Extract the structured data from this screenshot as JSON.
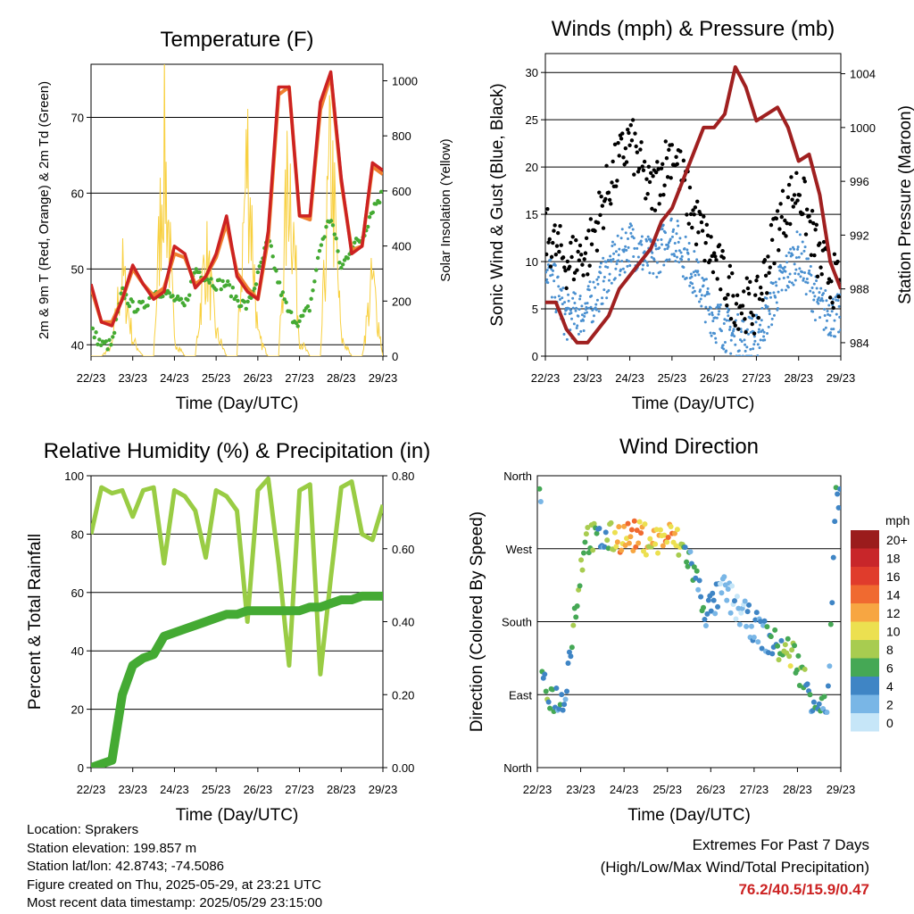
{
  "charts": {
    "time_ticks": [
      "22/23",
      "23/23",
      "24/23",
      "25/23",
      "26/23",
      "27/23",
      "28/23",
      "29/23"
    ],
    "time_axis_label": "Time (Day/UTC)"
  },
  "chart_data": [
    {
      "type": "line",
      "title": "Temperature (F)",
      "xlabel": "Time (Day/UTC)",
      "ylabel": "2m & 9m T (Red, Orange) & 2m Td (Green)",
      "ylabel_right": "Solar Insolation (Yellow)",
      "ylim": [
        38.5,
        77
      ],
      "yticks": [
        40,
        50,
        60,
        70
      ],
      "ylim_right": [
        0,
        1060
      ],
      "yticks_right": [
        0,
        200,
        400,
        600,
        800,
        1000
      ],
      "grid": "horizontal",
      "x": [
        0,
        0.25,
        0.5,
        0.75,
        1,
        1.25,
        1.5,
        1.75,
        2,
        2.25,
        2.5,
        2.75,
        3,
        3.25,
        3.5,
        3.75,
        4,
        4.25,
        4.5,
        4.75,
        5,
        5.25,
        5.5,
        5.75,
        6,
        6.25,
        6.5,
        6.75,
        7
      ],
      "series": [
        {
          "color": "#cc2222",
          "values": [
            48,
            43,
            42.5,
            46,
            50.5,
            48,
            46,
            47,
            53,
            52,
            47.5,
            49,
            52,
            57,
            49,
            47,
            46,
            55,
            74,
            74,
            57,
            57,
            72,
            76,
            62,
            52,
            53,
            64,
            63
          ]
        },
        {
          "color": "#f08030",
          "values": [
            47.5,
            43,
            43,
            46,
            50,
            48,
            46.5,
            47.5,
            52,
            51.5,
            48,
            49,
            51.5,
            56,
            49.5,
            47.5,
            46,
            54,
            73,
            74,
            57,
            56.5,
            71,
            75.5,
            61.5,
            52.5,
            53,
            63.5,
            62.5
          ]
        },
        {
          "color": "#44aa33",
          "values": [
            42,
            40,
            40,
            47,
            45,
            45,
            47,
            47,
            46,
            45,
            50,
            49,
            48,
            48,
            46,
            45,
            49,
            54,
            48,
            44,
            43,
            45,
            53,
            57,
            50,
            53,
            54,
            58,
            60
          ]
        },
        {
          "color": "#f8d040",
          "values": [
            0,
            0,
            50,
            420,
            80,
            0,
            0,
            1050,
            80,
            0,
            0,
            520,
            120,
            0,
            0,
            1020,
            100,
            0,
            0,
            980,
            80,
            0,
            0,
            1010,
            90,
            0,
            0,
            380,
            0
          ]
        }
      ]
    },
    {
      "type": "scatter",
      "title": "Winds (mph) & Pressure (mb)",
      "xlabel": "Time (Day/UTC)",
      "ylabel": "Sonic Wind & Gust (Blue, Black)",
      "ylabel_right": "Station Pressure (Maroon)",
      "ylim": [
        0,
        32
      ],
      "yticks": [
        0,
        5,
        10,
        15,
        20,
        25,
        30
      ],
      "ylim_right": [
        983,
        1005.5
      ],
      "yticks_right": [
        984,
        988,
        992,
        996,
        1000,
        1004
      ],
      "grid": "horizontal",
      "series": [
        {
          "color": "#000000",
          "x": [
            0,
            0.5,
            1,
            1.5,
            2,
            2.5,
            3,
            3.5,
            4,
            4.5,
            5,
            5.5,
            6,
            6.5,
            7
          ],
          "values": [
            13,
            10,
            11,
            18,
            23,
            17,
            22,
            15,
            10,
            6,
            5,
            14,
            18,
            10,
            7
          ]
        },
        {
          "color": "#4a90d0",
          "x": [
            0,
            0.5,
            1,
            1.5,
            2,
            2.5,
            3,
            3.5,
            4,
            4.5,
            5,
            5.5,
            6,
            6.5,
            7
          ],
          "values": [
            10,
            4,
            5,
            9,
            12,
            10,
            13,
            9,
            4,
            2,
            2,
            7,
            11,
            5,
            4
          ]
        },
        {
          "color": "#a02020",
          "x": [
            0,
            0.25,
            0.5,
            0.75,
            1,
            1.25,
            1.5,
            1.75,
            2,
            2.25,
            2.5,
            2.75,
            3,
            3.25,
            3.5,
            3.75,
            4,
            4.25,
            4.5,
            4.75,
            5,
            5.25,
            5.5,
            5.75,
            6,
            6.25,
            6.5,
            6.75,
            7
          ],
          "values": [
            987,
            987,
            985,
            984,
            984,
            985,
            986,
            988,
            989,
            990,
            991,
            993,
            994,
            996,
            998,
            1000,
            1000,
            1001,
            1004.5,
            1003,
            1000.5,
            1001,
            1001.5,
            1000,
            997.5,
            998,
            995,
            990,
            988
          ]
        }
      ]
    },
    {
      "type": "line",
      "title": "Relative Humidity (%) & Precipitation (in)",
      "xlabel": "Time (Day/UTC)",
      "ylabel": "Percent & Total Rainfall",
      "ylim": [
        0,
        100
      ],
      "yticks": [
        0,
        20,
        40,
        60,
        80,
        100
      ],
      "ylim_right": [
        0,
        0.8
      ],
      "yticks_right": [
        "0.00",
        "0.20",
        "0.40",
        "0.60",
        "0.80"
      ],
      "grid": "horizontal",
      "x": [
        0,
        0.25,
        0.5,
        0.75,
        1,
        1.25,
        1.5,
        1.75,
        2,
        2.25,
        2.5,
        2.75,
        3,
        3.25,
        3.5,
        3.75,
        4,
        4.25,
        4.5,
        4.75,
        5,
        5.25,
        5.5,
        5.75,
        6,
        6.25,
        6.5,
        6.75,
        7
      ],
      "series": [
        {
          "color": "#99cc44",
          "values": [
            80,
            96,
            94,
            95,
            86,
            95,
            96,
            70,
            95,
            93,
            88,
            72,
            95,
            93,
            88,
            50,
            95,
            99,
            70,
            35,
            95,
            97,
            32,
            65,
            96,
            98,
            80,
            78,
            90
          ]
        },
        {
          "color": "#44aa33",
          "axis": "right",
          "values": [
            0,
            0.01,
            0.02,
            0.2,
            0.28,
            0.3,
            0.31,
            0.36,
            0.37,
            0.38,
            0.39,
            0.4,
            0.41,
            0.42,
            0.42,
            0.43,
            0.43,
            0.43,
            0.43,
            0.43,
            0.43,
            0.44,
            0.44,
            0.45,
            0.46,
            0.46,
            0.47,
            0.47,
            0.47
          ]
        }
      ]
    },
    {
      "type": "scatter",
      "title": "Wind Direction",
      "xlabel": "Time (Day/UTC)",
      "ylabel": "Direction (Colored By Speed)",
      "yticks": [
        "North",
        "East",
        "South",
        "West",
        "North"
      ],
      "ylim": [
        0,
        360
      ],
      "grid": "horizontal",
      "legend": {
        "title": "mph",
        "labels": [
          "20+",
          "18",
          "16",
          "14",
          "12",
          "10",
          "8",
          "6",
          "4",
          "2",
          "0"
        ],
        "colors": [
          "#9b1c1c",
          "#c8262a",
          "#e03c2c",
          "#f06a30",
          "#f7a642",
          "#ece050",
          "#a8cc50",
          "#45a855",
          "#3f85c5",
          "#79b6e6",
          "#c6e6f8"
        ],
        "placement": "right"
      },
      "series": [
        {
          "name": "",
          "x": [
            0.1,
            0.3,
            0.6,
            1.1,
            1.5,
            1.9,
            2.3,
            2.7,
            3.1,
            3.5,
            3.9,
            4.3,
            4.7,
            5.1,
            5.5,
            5.9,
            6.3,
            6.7,
            6.9
          ],
          "values": [
            100,
            90,
            80,
            285,
            280,
            285,
            285,
            280,
            285,
            260,
            190,
            220,
            190,
            170,
            150,
            140,
            90,
            70,
            340
          ],
          "speeds": [
            4,
            6,
            4,
            8,
            4,
            12,
            12,
            10,
            12,
            4,
            4,
            2,
            2,
            2,
            6,
            8,
            4,
            4,
            4
          ]
        }
      ]
    }
  ],
  "footer": {
    "location": "Location: Sprakers",
    "elevation": "Station elevation: 199.857 m",
    "latlon": "Station lat/lon: 42.8743; -74.5086",
    "created": "Figure created on Thu, 2025-05-29, at 23:21 UTC",
    "recent": "Most recent data timestamp: 2025/05/29 23:15:00"
  },
  "extremes": {
    "title": "Extremes For Past 7 Days",
    "subtitle": "(High/Low/Max Wind/Total Precipitation)",
    "values": "76.2/40.5/15.9/0.47"
  }
}
